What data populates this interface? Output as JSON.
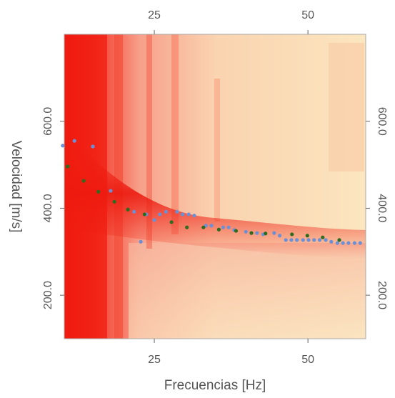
{
  "chart_data": {
    "type": "scatter",
    "x_label": "Frecuencias [Hz]",
    "y_label": "Velocidad [m/s]",
    "xlim": [
      10.35,
      59.4
    ],
    "ylim": [
      100,
      800
    ],
    "xticks": [
      25,
      50
    ],
    "yticks": [
      {
        "value": 200,
        "label": "200.0"
      },
      {
        "value": 400,
        "label": "400.0"
      },
      {
        "value": 600,
        "label": "600.0"
      }
    ],
    "series": [
      {
        "color": "#6e8fd4",
        "x": [
          10.1,
          12,
          15,
          17.9,
          21.7,
          22.8,
          23.7,
          25,
          25.9,
          26.9,
          28.7,
          29.6,
          30.6,
          31.5,
          33.4,
          34.3,
          36.2,
          37.1,
          38,
          39.9,
          41.7,
          42.7,
          44.5,
          45.4,
          46.4,
          47.3,
          48.2,
          49.2,
          50.1,
          51,
          51.9,
          52.9,
          53.8,
          54.8,
          55.7,
          56.6,
          57.6,
          58.5
        ],
        "values": [
          544,
          555,
          542,
          440,
          392,
          323,
          386,
          373,
          386,
          392,
          392,
          386,
          386,
          383,
          360,
          360,
          356,
          356,
          350,
          346,
          343,
          340,
          343,
          337,
          327,
          327,
          327,
          327,
          327,
          327,
          327,
          327,
          323,
          320,
          320,
          320,
          320,
          320
        ]
      },
      {
        "color": "#2f6b1e",
        "x": [
          10.9,
          13.5,
          15.9,
          18.5,
          20.7,
          23.4,
          27.8,
          30.3,
          33,
          35.5,
          38.3,
          40.8,
          43.1,
          47.4,
          49.9,
          52.4,
          55.1
        ],
        "values": [
          496,
          463,
          438,
          415,
          397,
          386,
          368,
          356,
          356,
          351,
          348,
          343,
          342,
          340,
          337,
          333,
          327
        ]
      }
    ]
  }
}
